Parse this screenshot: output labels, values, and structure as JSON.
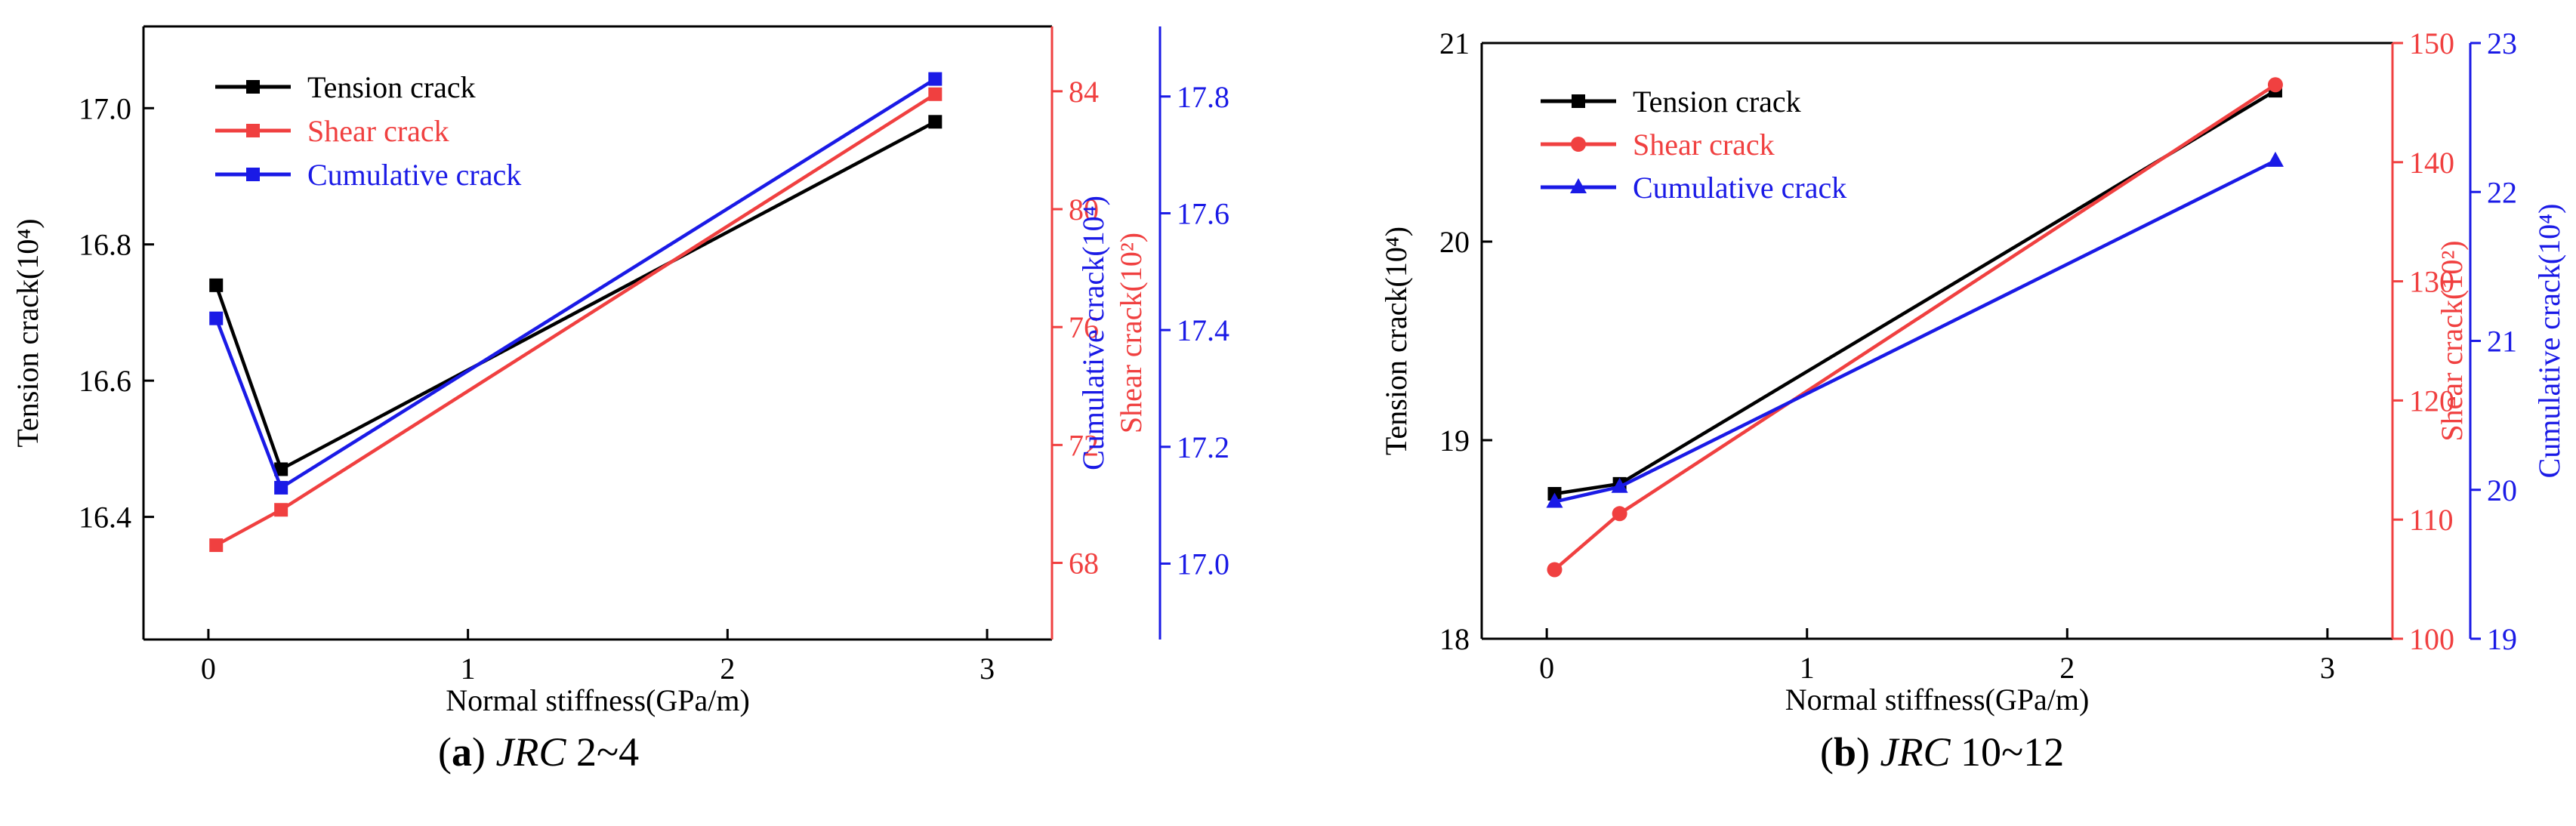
{
  "colors": {
    "tension": "#000000",
    "shear": "#f04040",
    "cumulative": "#1a1ae6"
  },
  "chart_data": [
    {
      "type": "line",
      "caption": {
        "letter": "a",
        "jrc_label": "JRC",
        "jrc_range": "2~4"
      },
      "xlabel": "Normal stiffness(GPa/m)",
      "xlim": [
        -0.25,
        3.25
      ],
      "xticks": [
        "0",
        "1",
        "2",
        "3"
      ],
      "grid": false,
      "legend_position": "top-left",
      "axes": {
        "left": {
          "label": "Tension crack(10⁴)",
          "ylim": [
            16.22,
            17.12
          ],
          "ticks": [
            "16.4",
            "16.6",
            "16.8",
            "17.0"
          ]
        },
        "right1": {
          "label": "Shear crack(10²)",
          "ylim": [
            65.4,
            86.2
          ],
          "ticks": [
            "68",
            "72",
            "76",
            "80",
            "84"
          ]
        },
        "right2": {
          "label": "Cumulative crack(10⁴)",
          "ylim": [
            16.87,
            17.92
          ],
          "ticks": [
            "17.0",
            "17.2",
            "17.4",
            "17.6",
            "17.8"
          ]
        }
      },
      "series": [
        {
          "name": "Tension crack",
          "axis": "left",
          "marker": "square",
          "x": [
            0.03,
            0.28,
            2.8
          ],
          "values": [
            16.74,
            16.47,
            16.98
          ]
        },
        {
          "name": "Shear crack",
          "axis": "right1",
          "marker": "square",
          "x": [
            0.03,
            0.28,
            2.8
          ],
          "values": [
            68.6,
            69.8,
            83.9
          ]
        },
        {
          "name": "Cumulative crack",
          "axis": "right2",
          "marker": "square",
          "x": [
            0.03,
            0.28,
            2.8
          ],
          "values": [
            17.42,
            17.13,
            17.83
          ]
        }
      ]
    },
    {
      "type": "line",
      "caption": {
        "letter": "b",
        "jrc_label": "JRC",
        "jrc_range": "10~12"
      },
      "xlabel": "Normal stiffness(GPa/m)",
      "xlim": [
        -0.25,
        3.25
      ],
      "xticks": [
        "0",
        "1",
        "2",
        "3"
      ],
      "grid": false,
      "legend_position": "top-left",
      "axes": {
        "left": {
          "label": "Tension crack(10⁴)",
          "ylim": [
            18,
            21
          ],
          "ticks": [
            "18",
            "19",
            "20",
            "21"
          ]
        },
        "right1": {
          "label": "Shear crack(10²)",
          "ylim": [
            100,
            150
          ],
          "ticks": [
            "100",
            "110",
            "120",
            "130",
            "140",
            "150"
          ]
        },
        "right2": {
          "label": "Cumulative crack(10⁴)",
          "ylim": [
            19,
            23
          ],
          "ticks": [
            "19",
            "20",
            "21",
            "22",
            "23"
          ]
        }
      },
      "series": [
        {
          "name": "Tension crack",
          "axis": "left",
          "marker": "square",
          "x": [
            0.03,
            0.28,
            2.8
          ],
          "values": [
            18.73,
            18.78,
            20.76
          ]
        },
        {
          "name": "Shear crack",
          "axis": "right1",
          "marker": "circle",
          "x": [
            0.03,
            0.28,
            2.8
          ],
          "values": [
            105.8,
            110.5,
            146.5
          ]
        },
        {
          "name": "Cumulative crack",
          "axis": "right2",
          "marker": "triangle",
          "x": [
            0.03,
            0.28,
            2.8
          ],
          "values": [
            19.92,
            20.02,
            22.21
          ]
        }
      ]
    }
  ]
}
